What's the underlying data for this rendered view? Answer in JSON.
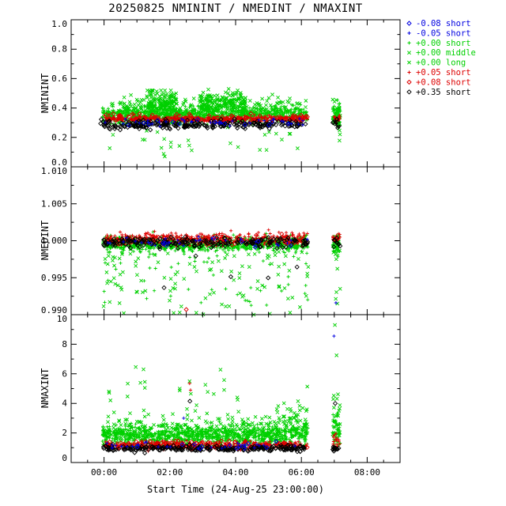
{
  "title": "20250825 NMININT / NMEDINT / NMAXINT",
  "colors": {
    "blue": "#0000e0",
    "green": "#00d000",
    "red": "#dd0000",
    "black": "#000000"
  },
  "legend": [
    {
      "marker": "diamond",
      "color": "blue",
      "label": "-0.08 short"
    },
    {
      "marker": "plus",
      "color": "blue",
      "label": "-0.05 short"
    },
    {
      "marker": "plus",
      "color": "green",
      "label": "+0.00 short"
    },
    {
      "marker": "x",
      "color": "green",
      "label": "+0.00 middle"
    },
    {
      "marker": "x",
      "color": "green",
      "label": "+0.00 long"
    },
    {
      "marker": "plus",
      "color": "red",
      "label": "+0.05 short"
    },
    {
      "marker": "diamond",
      "color": "red",
      "label": "+0.08 short"
    },
    {
      "marker": "diamond",
      "color": "black",
      "label": "+0.35 short"
    }
  ],
  "xaxis": {
    "label": "Start Time (24-Aug-25 23:00:00)",
    "range": [
      0,
      10
    ],
    "minor_step": 0.5,
    "major_ticks": [
      {
        "h": 1,
        "label": "00:00"
      },
      {
        "h": 3,
        "label": "02:00"
      },
      {
        "h": 5,
        "label": "04:00"
      },
      {
        "h": 7,
        "label": "06:00"
      },
      {
        "h": 9,
        "label": "08:00"
      }
    ]
  },
  "chart_data": [
    {
      "type": "scatter",
      "ylabel": "NMININT",
      "ylim": [
        0,
        1
      ],
      "yticks": [
        {
          "v": 0.0,
          "label": "0.0"
        },
        {
          "v": 0.2,
          "label": "0.2"
        },
        {
          "v": 0.4,
          "label": "0.4"
        },
        {
          "v": 0.6,
          "label": "0.6"
        },
        {
          "v": 0.8,
          "label": "0.8"
        },
        {
          "v": 1.0,
          "label": "1.0"
        }
      ],
      "clusters": [
        {
          "marker": "plus",
          "color": "green",
          "n": 850,
          "x": {
            "type": "uniform",
            "min": 0.95,
            "max": 7.2
          },
          "y": {
            "type": "gauss",
            "mean": 0.355,
            "sd": 0.03
          },
          "clip": [
            0.29,
            0.5
          ]
        },
        {
          "marker": "x",
          "color": "green",
          "n": 300,
          "x": {
            "type": "uniform",
            "min": 0.95,
            "max": 7.2
          },
          "y": {
            "type": "gauss",
            "mean": 0.39,
            "sd": 0.045
          },
          "clip": [
            0.27,
            0.52
          ]
        },
        {
          "marker": "x",
          "color": "green",
          "n": 130,
          "x": {
            "type": "uniform",
            "min": 2.3,
            "max": 3.2
          },
          "y": {
            "type": "gauss",
            "mean": 0.44,
            "sd": 0.035
          },
          "clip": [
            0.3,
            0.52
          ]
        },
        {
          "marker": "x",
          "color": "green",
          "n": 170,
          "x": {
            "type": "uniform",
            "min": 3.9,
            "max": 5.3
          },
          "y": {
            "type": "gauss",
            "mean": 0.44,
            "sd": 0.035
          },
          "clip": [
            0.3,
            0.53
          ]
        },
        {
          "marker": "x",
          "color": "green",
          "n": 28,
          "x": {
            "type": "uniform",
            "min": 1.0,
            "max": 7.3
          },
          "y": {
            "type": "uniform",
            "min": 0.05,
            "max": 0.27
          }
        },
        {
          "marker": "plus",
          "color": "red",
          "n": 420,
          "x": {
            "type": "uniform",
            "min": 1.0,
            "max": 7.2
          },
          "y": {
            "type": "gauss",
            "mean": 0.325,
            "sd": 0.011
          }
        },
        {
          "marker": "diamond",
          "color": "red",
          "n": 80,
          "x": {
            "type": "uniform",
            "min": 1.0,
            "max": 7.2
          },
          "y": {
            "type": "gauss",
            "mean": 0.332,
            "sd": 0.014
          }
        },
        {
          "marker": "diamond",
          "color": "black",
          "n": 250,
          "x": {
            "type": "uniform",
            "min": 0.88,
            "max": 7.2
          },
          "y": {
            "type": "gauss",
            "mean": 0.285,
            "sd": 0.015
          }
        },
        {
          "marker": "plus",
          "color": "blue",
          "n": 35,
          "x": {
            "type": "uniform",
            "min": 1.0,
            "max": 7.2
          },
          "y": {
            "type": "gauss",
            "mean": 0.302,
            "sd": 0.013
          }
        },
        {
          "marker": "diamond",
          "color": "blue",
          "n": 14,
          "x": {
            "type": "uniform",
            "min": 1.0,
            "max": 7.2
          },
          "y": {
            "type": "gauss",
            "mean": 0.3,
            "sd": 0.013
          }
        },
        {
          "marker": "plus",
          "color": "green",
          "n": 60,
          "x": {
            "type": "uniform",
            "min": 7.95,
            "max": 8.18
          },
          "y": {
            "type": "gauss",
            "mean": 0.355,
            "sd": 0.035
          }
        },
        {
          "marker": "x",
          "color": "green",
          "n": 20,
          "x": {
            "type": "uniform",
            "min": 7.95,
            "max": 8.18
          },
          "y": {
            "type": "gauss",
            "mean": 0.38,
            "sd": 0.05
          },
          "clip": [
            0.2,
            0.5
          ]
        },
        {
          "marker": "plus",
          "color": "red",
          "n": 22,
          "x": {
            "type": "uniform",
            "min": 7.95,
            "max": 8.18
          },
          "y": {
            "type": "gauss",
            "mean": 0.327,
            "sd": 0.012
          }
        },
        {
          "marker": "diamond",
          "color": "black",
          "n": 14,
          "x": {
            "type": "uniform",
            "min": 7.95,
            "max": 8.18
          },
          "y": {
            "type": "gauss",
            "mean": 0.29,
            "sd": 0.015
          }
        },
        {
          "marker": "x",
          "color": "green",
          "n": 5,
          "x": {
            "type": "uniform",
            "min": 7.95,
            "max": 8.18
          },
          "y": {
            "type": "uniform",
            "min": 0.17,
            "max": 0.3
          }
        }
      ],
      "points": []
    },
    {
      "type": "scatter",
      "ylabel": "NMEDINT",
      "ylim": [
        0.99,
        1.01
      ],
      "yticks": [
        {
          "v": 0.99,
          "label": "0.990"
        },
        {
          "v": 0.995,
          "label": "0.995"
        },
        {
          "v": 1.0,
          "label": "1.000"
        },
        {
          "v": 1.005,
          "label": "1.005"
        },
        {
          "v": 1.01,
          "label": "1.010"
        }
      ],
      "clusters": [
        {
          "marker": "plus",
          "color": "green",
          "n": 800,
          "x": {
            "type": "uniform",
            "min": 0.95,
            "max": 7.2
          },
          "y": {
            "type": "gauss",
            "mean": 0.9996,
            "sd": 0.0005
          },
          "clip": [
            0.9982,
            1.0012
          ]
        },
        {
          "marker": "x",
          "color": "green",
          "n": 150,
          "x": {
            "type": "uniform",
            "min": 0.95,
            "max": 7.3
          },
          "y": {
            "type": "powerdown",
            "min": 0.99,
            "max": 0.9993,
            "pow": 2.5
          }
        },
        {
          "marker": "plus",
          "color": "green",
          "n": 60,
          "x": {
            "type": "uniform",
            "min": 1.0,
            "max": 7.2
          },
          "y": {
            "type": "powerdown",
            "min": 0.991,
            "max": 0.999,
            "pow": 2
          }
        },
        {
          "marker": "plus",
          "color": "red",
          "n": 400,
          "x": {
            "type": "uniform",
            "min": 1.0,
            "max": 7.2
          },
          "y": {
            "type": "gauss",
            "mean": 1.0002,
            "sd": 0.0004
          }
        },
        {
          "marker": "diamond",
          "color": "red",
          "n": 55,
          "x": {
            "type": "uniform",
            "min": 1.0,
            "max": 7.2
          },
          "y": {
            "type": "gauss",
            "mean": 1.0001,
            "sd": 0.00045
          }
        },
        {
          "marker": "diamond",
          "color": "black",
          "n": 210,
          "x": {
            "type": "uniform",
            "min": 0.95,
            "max": 7.2
          },
          "y": {
            "type": "gauss",
            "mean": 0.9998,
            "sd": 0.00032
          }
        },
        {
          "marker": "plus",
          "color": "blue",
          "n": 28,
          "x": {
            "type": "uniform",
            "min": 1.0,
            "max": 7.2
          },
          "y": {
            "type": "gauss",
            "mean": 0.9999,
            "sd": 0.0004
          }
        },
        {
          "marker": "diamond",
          "color": "blue",
          "n": 10,
          "x": {
            "type": "uniform",
            "min": 1.0,
            "max": 7.2
          },
          "y": {
            "type": "gauss",
            "mean": 0.9998,
            "sd": 0.0004
          }
        },
        {
          "marker": "diamond",
          "color": "black",
          "n": 5,
          "x": {
            "type": "uniform",
            "min": 1.0,
            "max": 7.2
          },
          "y": {
            "type": "uniform",
            "min": 0.9935,
            "max": 0.998
          }
        },
        {
          "marker": "plus",
          "color": "green",
          "n": 55,
          "x": {
            "type": "uniform",
            "min": 7.95,
            "max": 8.18
          },
          "y": {
            "type": "gauss",
            "mean": 0.9995,
            "sd": 0.0007
          }
        },
        {
          "marker": "plus",
          "color": "red",
          "n": 18,
          "x": {
            "type": "uniform",
            "min": 7.95,
            "max": 8.18
          },
          "y": {
            "type": "gauss",
            "mean": 1.0002,
            "sd": 0.0004
          }
        },
        {
          "marker": "x",
          "color": "green",
          "n": 10,
          "x": {
            "type": "uniform",
            "min": 7.95,
            "max": 8.18
          },
          "y": {
            "type": "powerdown",
            "min": 0.99,
            "max": 0.999,
            "pow": 1.5
          }
        },
        {
          "marker": "diamond",
          "color": "black",
          "n": 8,
          "x": {
            "type": "uniform",
            "min": 7.95,
            "max": 8.18
          },
          "y": {
            "type": "gauss",
            "mean": 0.9997,
            "sd": 0.0004
          }
        }
      ],
      "points": [
        {
          "marker": "plus",
          "color": "blue",
          "pts": [
            [
              8.05,
              0.9916
            ]
          ]
        },
        {
          "marker": "x",
          "color": "green",
          "pts": [
            [
              5.55,
              0.99
            ],
            [
              3.3,
              0.9903
            ],
            [
              1.6,
              0.9902
            ]
          ]
        },
        {
          "marker": "diamond",
          "color": "red",
          "pts": [
            [
              3.5,
              0.9907
            ]
          ]
        }
      ]
    },
    {
      "type": "scatter",
      "ylabel": "NMAXINT",
      "ylim": [
        0,
        10
      ],
      "yticks": [
        {
          "v": 0,
          "label": "0"
        },
        {
          "v": 2,
          "label": "2"
        },
        {
          "v": 4,
          "label": "4"
        },
        {
          "v": 6,
          "label": "6"
        },
        {
          "v": 8,
          "label": "8"
        },
        {
          "v": 10,
          "label": "10"
        }
      ],
      "clusters": [
        {
          "marker": "plus",
          "color": "green",
          "n": 900,
          "x": {
            "type": "uniform",
            "min": 0.95,
            "max": 7.2
          },
          "y": {
            "type": "gauss",
            "mean": 1.8,
            "sd": 0.32
          },
          "clip": [
            1.15,
            3.4
          ]
        },
        {
          "marker": "x",
          "color": "green",
          "n": 300,
          "x": {
            "type": "uniform",
            "min": 0.95,
            "max": 7.2
          },
          "y": {
            "type": "gauss",
            "mean": 2.2,
            "sd": 0.5
          },
          "clip": [
            1.2,
            4.3
          ]
        },
        {
          "marker": "x",
          "color": "green",
          "n": 26,
          "x": {
            "type": "uniform",
            "min": 1.0,
            "max": 7.2
          },
          "y": {
            "type": "uniform",
            "min": 2.6,
            "max": 6.6
          }
        },
        {
          "marker": "x",
          "color": "green",
          "n": 40,
          "x": {
            "type": "uniform",
            "min": 6.2,
            "max": 7.2
          },
          "y": {
            "type": "uniform",
            "min": 2.2,
            "max": 3.9
          }
        },
        {
          "marker": "plus",
          "color": "red",
          "n": 380,
          "x": {
            "type": "uniform",
            "min": 1.0,
            "max": 7.2
          },
          "y": {
            "type": "gauss",
            "mean": 1.15,
            "sd": 0.12
          }
        },
        {
          "marker": "diamond",
          "color": "red",
          "n": 70,
          "x": {
            "type": "uniform",
            "min": 1.0,
            "max": 7.2
          },
          "y": {
            "type": "gauss",
            "mean": 1.25,
            "sd": 0.15
          }
        },
        {
          "marker": "diamond",
          "color": "black",
          "n": 250,
          "x": {
            "type": "uniform",
            "min": 0.95,
            "max": 7.2
          },
          "y": {
            "type": "gauss",
            "mean": 0.95,
            "sd": 0.1
          }
        },
        {
          "marker": "plus",
          "color": "blue",
          "n": 30,
          "x": {
            "type": "uniform",
            "min": 1.0,
            "max": 7.2
          },
          "y": {
            "type": "gauss",
            "mean": 1.1,
            "sd": 0.13
          }
        },
        {
          "marker": "diamond",
          "color": "blue",
          "n": 12,
          "x": {
            "type": "uniform",
            "min": 1.0,
            "max": 7.2
          },
          "y": {
            "type": "gauss",
            "mean": 1.15,
            "sd": 0.15
          }
        },
        {
          "marker": "plus",
          "color": "green",
          "n": 55,
          "x": {
            "type": "uniform",
            "min": 7.95,
            "max": 8.18
          },
          "y": {
            "type": "gauss",
            "mean": 2.1,
            "sd": 0.6
          },
          "clip": [
            1.2,
            4.6
          ]
        },
        {
          "marker": "x",
          "color": "green",
          "n": 18,
          "x": {
            "type": "uniform",
            "min": 7.95,
            "max": 8.18
          },
          "y": {
            "type": "uniform",
            "min": 1.5,
            "max": 4.8
          }
        },
        {
          "marker": "plus",
          "color": "red",
          "n": 18,
          "x": {
            "type": "uniform",
            "min": 7.95,
            "max": 8.18
          },
          "y": {
            "type": "gauss",
            "mean": 1.35,
            "sd": 0.25
          }
        },
        {
          "marker": "diamond",
          "color": "black",
          "n": 12,
          "x": {
            "type": "uniform",
            "min": 7.95,
            "max": 8.18
          },
          "y": {
            "type": "gauss",
            "mean": 1.0,
            "sd": 0.12
          }
        }
      ],
      "points": [
        {
          "marker": "x",
          "color": "green",
          "pts": [
            [
              8.02,
              9.3
            ],
            [
              8.07,
              7.25
            ],
            [
              2.2,
              6.3
            ],
            [
              2.24,
              5.05
            ],
            [
              3.3,
              5.0
            ],
            [
              3.6,
              5.5
            ],
            [
              3.64,
              4.65
            ],
            [
              5.05,
              4.4
            ],
            [
              6.9,
              4.15
            ],
            [
              1.15,
              4.8
            ]
          ]
        },
        {
          "marker": "plus",
          "color": "blue",
          "pts": [
            [
              7.99,
              8.55
            ],
            [
              3.42,
              3.0
            ]
          ]
        },
        {
          "marker": "plus",
          "color": "red",
          "pts": [
            [
              3.6,
              5.35
            ],
            [
              3.63,
              4.9
            ]
          ]
        },
        {
          "marker": "diamond",
          "color": "black",
          "pts": [
            [
              3.61,
              4.15
            ],
            [
              8.03,
              4.0
            ]
          ]
        }
      ]
    }
  ]
}
